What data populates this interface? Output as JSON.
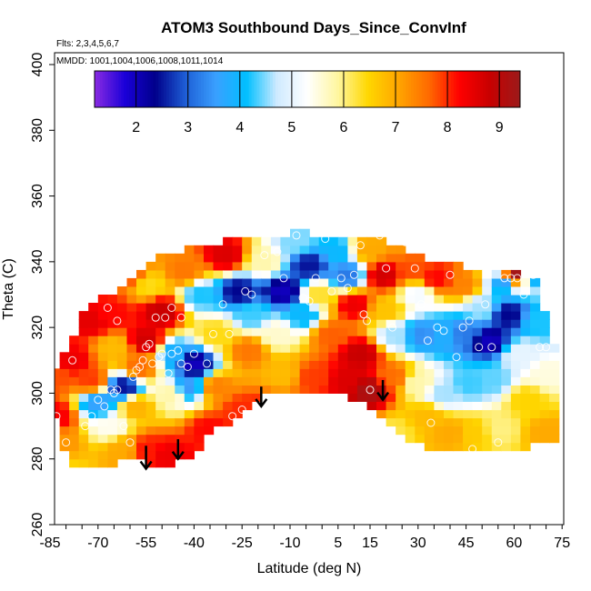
{
  "chart_data": {
    "type": "heatmap",
    "title": "ATOM3 Southbound Days_Since_ConvInf",
    "subtitle_flights": "Flts: 2,3,4,5,6,7",
    "subtitle_dates": "MMDD: 1001,1004,1006,1008,1011,1014",
    "xlabel": "Latitude (deg N)",
    "ylabel": "Theta (C)",
    "xlim": [
      -85,
      85
    ],
    "ylim": [
      260,
      403
    ],
    "x_ticks": [
      -85,
      -70,
      -55,
      -40,
      -25,
      -10,
      5,
      15,
      30,
      45,
      60,
      75
    ],
    "x_tick_labels": [
      "-85",
      "-70",
      "-55",
      "-40",
      "-25",
      "-10",
      "5",
      "15",
      "30",
      "45",
      "60",
      "75"
    ],
    "y_ticks": [
      260,
      280,
      300,
      320,
      340,
      360,
      380,
      400
    ],
    "y_tick_labels": [
      "260",
      "280",
      "300",
      "320",
      "340",
      "360",
      "380",
      "400"
    ],
    "colorbar": {
      "min": 1.2,
      "max": 9.4,
      "ticks": [
        2,
        3,
        4,
        5,
        6,
        7,
        8,
        9
      ],
      "tick_labels": [
        "2",
        "3",
        "4",
        "5",
        "6",
        "7",
        "8",
        "9"
      ],
      "colors": [
        "#8a2be2",
        "#1a00d8",
        "#00008b",
        "#1e5fd6",
        "#3aa0ff",
        "#00bfff",
        "#cfeaff",
        "#ffffff",
        "#fff6a0",
        "#ffd700",
        "#ffa500",
        "#ff6a00",
        "#ff0000",
        "#c80000",
        "#9b1b1b"
      ]
    },
    "grid": false,
    "field_points": [
      {
        "x": -83,
        "y": 293,
        "v": 8.3
      },
      {
        "x": -82,
        "y": 285,
        "v": 7.2
      },
      {
        "x": -80,
        "y": 276,
        "v": 6.5
      },
      {
        "x": -83,
        "y": 305,
        "v": 7.8
      },
      {
        "x": -78,
        "y": 310,
        "v": 8.4
      },
      {
        "x": -72,
        "y": 304,
        "v": 7.9
      },
      {
        "x": -70,
        "y": 297,
        "v": 3.6
      },
      {
        "x": -66,
        "y": 290,
        "v": 5.4
      },
      {
        "x": -62,
        "y": 283,
        "v": 7.0
      },
      {
        "x": -72,
        "y": 322,
        "v": 8.5
      },
      {
        "x": -66,
        "y": 324,
        "v": 8.2
      },
      {
        "x": -65,
        "y": 314,
        "v": 6.8
      },
      {
        "x": -62,
        "y": 302,
        "v": 2.5
      },
      {
        "x": -58,
        "y": 296,
        "v": 6.9
      },
      {
        "x": -57,
        "y": 308,
        "v": 7.6
      },
      {
        "x": -55,
        "y": 316,
        "v": 8.7
      },
      {
        "x": -50,
        "y": 325,
        "v": 8.8
      },
      {
        "x": -54,
        "y": 333,
        "v": 6.4
      },
      {
        "x": -60,
        "y": 336,
        "v": 7.8
      },
      {
        "x": -55,
        "y": 283,
        "v": 8.1
      },
      {
        "x": -48,
        "y": 281,
        "v": 8.4
      },
      {
        "x": -47,
        "y": 300,
        "v": 5.8
      },
      {
        "x": -46,
        "y": 312,
        "v": 3.8
      },
      {
        "x": -40,
        "y": 309,
        "v": 2.0
      },
      {
        "x": -42,
        "y": 302,
        "v": 3.5
      },
      {
        "x": -35,
        "y": 289,
        "v": 8.2
      },
      {
        "x": -33,
        "y": 302,
        "v": 7.4
      },
      {
        "x": -33,
        "y": 318,
        "v": 6.4
      },
      {
        "x": -38,
        "y": 330,
        "v": 4.2
      },
      {
        "x": -43,
        "y": 337,
        "v": 7.5
      },
      {
        "x": -30,
        "y": 342,
        "v": 8.6
      },
      {
        "x": -26,
        "y": 331,
        "v": 2.4
      },
      {
        "x": -22,
        "y": 324,
        "v": 4.3
      },
      {
        "x": -23,
        "y": 313,
        "v": 7.5
      },
      {
        "x": -25,
        "y": 295,
        "v": 8.0
      },
      {
        "x": -16,
        "y": 294,
        "v": 8.3
      },
      {
        "x": -12,
        "y": 306,
        "v": 6.8
      },
      {
        "x": -14,
        "y": 318,
        "v": 5.6
      },
      {
        "x": -12,
        "y": 331,
        "v": 2.0
      },
      {
        "x": -18,
        "y": 340,
        "v": 5.8
      },
      {
        "x": -8,
        "y": 346,
        "v": 4.5
      },
      {
        "x": -4,
        "y": 339,
        "v": 2.5
      },
      {
        "x": -6,
        "y": 324,
        "v": 4.0
      },
      {
        "x": -1,
        "y": 330,
        "v": 6.3
      },
      {
        "x": 3,
        "y": 318,
        "v": 7.7
      },
      {
        "x": -3,
        "y": 305,
        "v": 7.9
      },
      {
        "x": 8,
        "y": 304,
        "v": 8.6
      },
      {
        "x": 12,
        "y": 312,
        "v": 8.8
      },
      {
        "x": 15,
        "y": 301,
        "v": 9.2
      },
      {
        "x": 10,
        "y": 327,
        "v": 8.4
      },
      {
        "x": 5,
        "y": 343,
        "v": 4.0
      },
      {
        "x": 8,
        "y": 336,
        "v": 3.2
      },
      {
        "x": 14,
        "y": 344,
        "v": 7.0
      },
      {
        "x": 19,
        "y": 336,
        "v": 8.7
      },
      {
        "x": 20,
        "y": 325,
        "v": 6.7
      },
      {
        "x": 23,
        "y": 318,
        "v": 4.6
      },
      {
        "x": 22,
        "y": 305,
        "v": 7.6
      },
      {
        "x": 26,
        "y": 346,
        "v": 7.2
      },
      {
        "x": 28,
        "y": 338,
        "v": 7.8
      },
      {
        "x": 30,
        "y": 330,
        "v": 5.2
      },
      {
        "x": 31,
        "y": 318,
        "v": 3.4
      },
      {
        "x": 30,
        "y": 303,
        "v": 5.8
      },
      {
        "x": 33,
        "y": 293,
        "v": 6.8
      },
      {
        "x": 36,
        "y": 335,
        "v": 8.2
      },
      {
        "x": 38,
        "y": 318,
        "v": 3.8
      },
      {
        "x": 38,
        "y": 300,
        "v": 4.6
      },
      {
        "x": 40,
        "y": 288,
        "v": 7.0
      },
      {
        "x": 44,
        "y": 333,
        "v": 7.4
      },
      {
        "x": 45,
        "y": 318,
        "v": 3.2
      },
      {
        "x": 46,
        "y": 303,
        "v": 4.3
      },
      {
        "x": 48,
        "y": 288,
        "v": 6.6
      },
      {
        "x": 50,
        "y": 326,
        "v": 4.6
      },
      {
        "x": 52,
        "y": 316,
        "v": 2.0
      },
      {
        "x": 53,
        "y": 304,
        "v": 4.4
      },
      {
        "x": 55,
        "y": 289,
        "v": 6.0
      },
      {
        "x": 57,
        "y": 334,
        "v": 3.6
      },
      {
        "x": 58,
        "y": 324,
        "v": 2.4
      },
      {
        "x": 60,
        "y": 336,
        "v": 9.3
      },
      {
        "x": 62,
        "y": 312,
        "v": 5.0
      },
      {
        "x": 64,
        "y": 298,
        "v": 6.5
      },
      {
        "x": 66,
        "y": 336,
        "v": 3.8
      },
      {
        "x": 68,
        "y": 322,
        "v": 4.2
      },
      {
        "x": 70,
        "y": 306,
        "v": 5.5
      },
      {
        "x": 70,
        "y": 288,
        "v": 7.0
      },
      {
        "x": 22,
        "y": 288,
        "v": 6.2
      },
      {
        "x": 6,
        "y": 292,
        "v": 8.8
      },
      {
        "x": -5,
        "y": 290,
        "v": 8.6
      }
    ],
    "coverage": {
      "x_cols": [
        -85,
        -82,
        -79,
        -76,
        -73,
        -70,
        -67,
        -64,
        -61,
        -58,
        -55,
        -52,
        -49,
        -46,
        -43,
        -40,
        -37,
        -34,
        -31,
        -28,
        -25,
        -22,
        -19,
        -16,
        -13,
        -10,
        -7,
        -4,
        -1,
        2,
        5,
        8,
        11,
        14,
        17,
        20,
        23,
        26,
        29,
        32,
        35,
        38,
        41,
        44,
        47,
        50,
        53,
        56,
        59,
        62,
        65,
        68,
        71
      ],
      "bottom": [
        296,
        289,
        278,
        278,
        278,
        278,
        278,
        279,
        279,
        280,
        279,
        278,
        277,
        278,
        280,
        282,
        285,
        288,
        290,
        292,
        294,
        296,
        298,
        300,
        301,
        301,
        301,
        301,
        300,
        300,
        300,
        299,
        298,
        296,
        294,
        292,
        289,
        287,
        285,
        284,
        283,
        283,
        283,
        283,
        283,
        283,
        283,
        283,
        283,
        283,
        284,
        284,
        284
      ],
      "top": [
        308,
        309,
        315,
        322,
        326,
        328,
        330,
        330,
        333,
        337,
        340,
        342,
        342,
        343,
        344,
        345,
        345,
        345,
        346,
        347,
        347,
        347,
        348,
        348,
        348,
        349,
        350,
        349,
        348,
        347,
        347,
        348,
        348,
        348,
        347,
        346,
        345,
        344,
        342,
        341,
        341,
        340,
        340,
        339,
        338,
        338,
        337,
        337,
        337,
        336,
        336,
        335,
        315
      ]
    },
    "sample_points": [
      {
        "x": -83,
        "y": 293
      },
      {
        "x": -78,
        "y": 310
      },
      {
        "x": -70,
        "y": 298
      },
      {
        "x": -68,
        "y": 296
      },
      {
        "x": -66,
        "y": 301
      },
      {
        "x": -65,
        "y": 300
      },
      {
        "x": -64,
        "y": 301
      },
      {
        "x": -67,
        "y": 326
      },
      {
        "x": -64,
        "y": 322
      },
      {
        "x": -59,
        "y": 305
      },
      {
        "x": -58,
        "y": 307
      },
      {
        "x": -57,
        "y": 308
      },
      {
        "x": -56,
        "y": 310
      },
      {
        "x": -55,
        "y": 314
      },
      {
        "x": -54,
        "y": 315
      },
      {
        "x": -53,
        "y": 309
      },
      {
        "x": -51,
        "y": 311
      },
      {
        "x": -50,
        "y": 312
      },
      {
        "x": -48,
        "y": 306
      },
      {
        "x": -47,
        "y": 312
      },
      {
        "x": -45,
        "y": 313
      },
      {
        "x": -44,
        "y": 309
      },
      {
        "x": -42,
        "y": 308
      },
      {
        "x": -40,
        "y": 312
      },
      {
        "x": -52,
        "y": 323
      },
      {
        "x": -49,
        "y": 323
      },
      {
        "x": -47,
        "y": 326
      },
      {
        "x": -44,
        "y": 323
      },
      {
        "x": -60,
        "y": 285
      },
      {
        "x": -62,
        "y": 290
      },
      {
        "x": -72,
        "y": 293
      },
      {
        "x": -74,
        "y": 290
      },
      {
        "x": -80,
        "y": 285
      },
      {
        "x": -36,
        "y": 309
      },
      {
        "x": -34,
        "y": 318
      },
      {
        "x": -28,
        "y": 293
      },
      {
        "x": -25,
        "y": 295
      },
      {
        "x": -29,
        "y": 318
      },
      {
        "x": -31,
        "y": 327
      },
      {
        "x": -24,
        "y": 331
      },
      {
        "x": -22,
        "y": 330
      },
      {
        "x": -18,
        "y": 342
      },
      {
        "x": -14,
        "y": 343
      },
      {
        "x": -12,
        "y": 335
      },
      {
        "x": -8,
        "y": 348
      },
      {
        "x": -6,
        "y": 329
      },
      {
        "x": -4,
        "y": 328
      },
      {
        "x": -2,
        "y": 335
      },
      {
        "x": 1,
        "y": 347
      },
      {
        "x": 3,
        "y": 331
      },
      {
        "x": 6,
        "y": 335
      },
      {
        "x": 8,
        "y": 332
      },
      {
        "x": 10,
        "y": 336
      },
      {
        "x": 12,
        "y": 345
      },
      {
        "x": 13,
        "y": 324
      },
      {
        "x": 14,
        "y": 322
      },
      {
        "x": 15,
        "y": 301
      },
      {
        "x": 18,
        "y": 348
      },
      {
        "x": 20,
        "y": 338
      },
      {
        "x": 22,
        "y": 320
      },
      {
        "x": 26,
        "y": 346
      },
      {
        "x": 29,
        "y": 338
      },
      {
        "x": 31,
        "y": 327
      },
      {
        "x": 33,
        "y": 316
      },
      {
        "x": 34,
        "y": 291
      },
      {
        "x": 36,
        "y": 320
      },
      {
        "x": 38,
        "y": 319
      },
      {
        "x": 40,
        "y": 336
      },
      {
        "x": 42,
        "y": 311
      },
      {
        "x": 44,
        "y": 320
      },
      {
        "x": 46,
        "y": 322
      },
      {
        "x": 47,
        "y": 283
      },
      {
        "x": 49,
        "y": 314
      },
      {
        "x": 51,
        "y": 327
      },
      {
        "x": 53,
        "y": 314
      },
      {
        "x": 55,
        "y": 285
      },
      {
        "x": 57,
        "y": 335
      },
      {
        "x": 59,
        "y": 335
      },
      {
        "x": 61,
        "y": 335
      },
      {
        "x": 63,
        "y": 330
      },
      {
        "x": 66,
        "y": 336
      },
      {
        "x": 68,
        "y": 314
      },
      {
        "x": 70,
        "y": 314
      }
    ],
    "arrows": [
      {
        "x": -55,
        "y_top": 284,
        "y_bottom": 277
      },
      {
        "x": -45,
        "y_top": 286,
        "y_bottom": 280
      },
      {
        "x": -19,
        "y_top": 302,
        "y_bottom": 296
      },
      {
        "x": 19,
        "y_top": 304,
        "y_bottom": 298
      }
    ]
  }
}
